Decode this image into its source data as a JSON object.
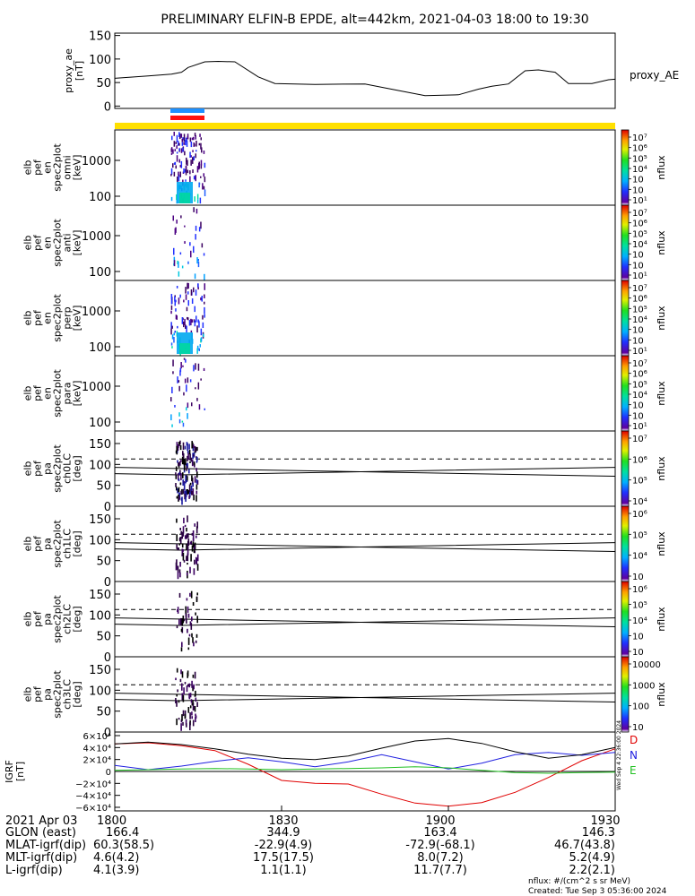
{
  "title": "PRELIMINARY ELFIN-B EPDE, alt=442km, 2021-04-03 18:00 to 19:30",
  "footer": {
    "line1": "nflux: #/(cm^2 s sr MeV)",
    "line2": "Created: Tue Sep  3 05:36:00 2024",
    "vertical_stamp": "Wed Sep  4 22:36:00 2024"
  },
  "colors": {
    "sci_zone_bar": "#ffe000",
    "fgm_bar_blue": "#1e90ff",
    "fgm_bar_red": "#ff1010",
    "spec_blue": "#1050ff",
    "geo_D": "#e00000",
    "geo_N": "#2020e0",
    "geo_E": "#20c020"
  },
  "time_axis": {
    "ticks": [
      "1800",
      "1830",
      "1900",
      "1930"
    ],
    "date_label": "2021 Apr 03"
  },
  "orbit_table": {
    "rows": [
      {
        "label": "GLON (east)",
        "values": [
          "166.4",
          "344.9",
          "163.4",
          "146.3"
        ]
      },
      {
        "label": "MLAT-igrf(dip)",
        "values": [
          "60.3(58.5)",
          "-22.9(4.9)",
          "-72.9(-68.1)",
          "46.7(43.8)"
        ]
      },
      {
        "label": "MLT-igrf(dip)",
        "values": [
          "4.6(4.2)",
          "17.5(17.5)",
          "8.0(7.2)",
          "5.2(4.9)"
        ]
      },
      {
        "label": "L-igrf(dip)",
        "values": [
          "4.1(3.9)",
          "1.1(1.1)",
          "11.7(7.7)",
          "2.2(2.1)"
        ]
      }
    ]
  },
  "chart_data": [
    {
      "type": "line",
      "ylabel": "proxy_ae [nT]",
      "series": [
        {
          "name": "proxy_AE",
          "x": [
            18.0,
            18.1,
            18.17,
            18.2,
            18.22,
            18.27,
            18.31,
            18.36,
            18.43,
            18.48,
            18.6,
            18.75,
            18.85,
            18.93,
            19.03,
            19.09,
            19.13,
            19.18,
            19.23,
            19.27,
            19.32,
            19.36,
            19.43,
            19.48,
            19.5
          ],
          "values": [
            59,
            64,
            68,
            72,
            82,
            94,
            95,
            94,
            62,
            48,
            46,
            47,
            33,
            22,
            24,
            36,
            42,
            47,
            75,
            77,
            72,
            48,
            48,
            56,
            57
          ]
        }
      ],
      "ylim": [
        -5,
        155
      ],
      "yticks": [
        "0",
        "50",
        "100",
        "150"
      ],
      "xlim": [
        18.0,
        19.5
      ]
    },
    {
      "type": "heatmap",
      "ylabel": "elb pef en spec2plot omni [keV]",
      "y_scale": "log",
      "yticks": [
        "100",
        "1000"
      ],
      "colorbar": {
        "label": "nflux",
        "ticks": [
          "10⁷",
          "10⁶",
          "10⁵",
          "10⁴",
          "10⁳",
          "10⁲",
          "10¹"
        ]
      }
    },
    {
      "type": "heatmap",
      "ylabel": "elb pef en spec2plot anti [keV]",
      "y_scale": "log",
      "yticks": [
        "100",
        "1000"
      ],
      "colorbar": {
        "label": "nflux",
        "ticks": [
          "10⁷",
          "10⁶",
          "10⁵",
          "10⁴",
          "10⁳",
          "10⁲",
          "10¹"
        ]
      }
    },
    {
      "type": "heatmap",
      "ylabel": "elb pef en spec2plot perp [keV]",
      "y_scale": "log",
      "yticks": [
        "100",
        "1000"
      ],
      "colorbar": {
        "label": "nflux",
        "ticks": [
          "10⁷",
          "10⁶",
          "10⁵",
          "10⁴",
          "10⁳",
          "10⁲",
          "10¹"
        ]
      }
    },
    {
      "type": "heatmap",
      "ylabel": "elb pef en spec2plot para [keV]",
      "y_scale": "log",
      "yticks": [
        "100",
        "1000"
      ],
      "colorbar": {
        "label": "nflux",
        "ticks": [
          "10⁷",
          "10⁶",
          "10⁵",
          "10⁴",
          "10⁳",
          "10⁲",
          "10¹"
        ]
      }
    },
    {
      "type": "heatmap",
      "ylabel": "elb pef pa spec2plot ch0LC [deg]",
      "yticks": [
        "0",
        "50",
        "100",
        "150"
      ],
      "ylim": [
        0,
        180
      ],
      "colorbar": {
        "label": "nflux",
        "ticks": [
          "10⁷",
          "10⁶",
          "10⁵",
          "10⁴"
        ]
      }
    },
    {
      "type": "heatmap",
      "ylabel": "elb pef pa spec2plot ch1LC [deg]",
      "yticks": [
        "0",
        "50",
        "100",
        "150"
      ],
      "ylim": [
        0,
        180
      ],
      "colorbar": {
        "label": "nflux",
        "ticks": [
          "10⁶",
          "10⁵",
          "10⁴",
          "10⁳"
        ]
      }
    },
    {
      "type": "heatmap",
      "ylabel": "elb pef pa spec2plot ch2LC [deg]",
      "yticks": [
        "0",
        "50",
        "100",
        "150"
      ],
      "ylim": [
        0,
        180
      ],
      "colorbar": {
        "label": "nflux",
        "ticks": [
          "10⁶",
          "10⁵",
          "10⁴",
          "10⁳",
          "10⁲"
        ]
      }
    },
    {
      "type": "heatmap",
      "ylabel": "elb pef pa spec2plot ch3LC [deg]",
      "yticks": [
        "0",
        "50",
        "100",
        "150"
      ],
      "ylim": [
        0,
        180
      ],
      "colorbar": {
        "label": "nflux",
        "ticks": [
          "10000",
          "1000",
          "100",
          "10"
        ]
      }
    },
    {
      "type": "line",
      "ylabel": "IGRF [nT]",
      "yticks": [
        "6×10⁴",
        "4×10⁴",
        "2×10⁴",
        "0",
        "−2×10⁴",
        "−4×10⁴",
        "−6×10⁴"
      ],
      "ylim": [
        -66000,
        66000
      ],
      "xlim": [
        18.0,
        19.5
      ],
      "series": [
        {
          "name": "D",
          "color": "#e00000",
          "x": [
            18.0,
            18.1,
            18.2,
            18.3,
            18.4,
            18.5,
            18.6,
            18.7,
            18.8,
            18.9,
            19.0,
            19.1,
            19.2,
            19.3,
            19.4,
            19.5
          ],
          "values": [
            46000,
            48000,
            43000,
            35000,
            12000,
            -15000,
            -20000,
            -21000,
            -38000,
            -53000,
            -58000,
            -52000,
            -35000,
            -10000,
            18000,
            38000
          ]
        },
        {
          "name": "N",
          "color": "#2020e0",
          "x": [
            18.0,
            18.1,
            18.2,
            18.3,
            18.4,
            18.5,
            18.6,
            18.7,
            18.8,
            18.9,
            19.0,
            19.1,
            19.2,
            19.3,
            19.4,
            19.5
          ],
          "values": [
            10000,
            3000,
            9000,
            17000,
            23000,
            16000,
            8000,
            16000,
            28000,
            16000,
            4000,
            14000,
            28000,
            32000,
            27000,
            32000
          ]
        },
        {
          "name": "E",
          "color": "#20c020",
          "x": [
            18.0,
            18.1,
            18.2,
            18.3,
            18.4,
            18.5,
            18.6,
            18.7,
            18.8,
            18.9,
            19.0,
            19.1,
            19.2,
            19.3,
            19.4,
            19.5
          ],
          "values": [
            2000,
            3000,
            4000,
            5000,
            4000,
            3000,
            4000,
            5000,
            6000,
            8000,
            6000,
            2000,
            -2000,
            -3000,
            -2000,
            -1000
          ]
        },
        {
          "name": "",
          "color": "#000000",
          "x": [
            18.0,
            18.1,
            18.2,
            18.3,
            18.4,
            18.5,
            18.6,
            18.7,
            18.8,
            18.9,
            19.0,
            19.1,
            19.2,
            19.3,
            19.4,
            19.5
          ],
          "values": [
            46000,
            49000,
            45000,
            38000,
            29000,
            22000,
            20000,
            26000,
            39000,
            51000,
            55000,
            47000,
            33000,
            22000,
            28000,
            40000
          ]
        }
      ]
    }
  ]
}
